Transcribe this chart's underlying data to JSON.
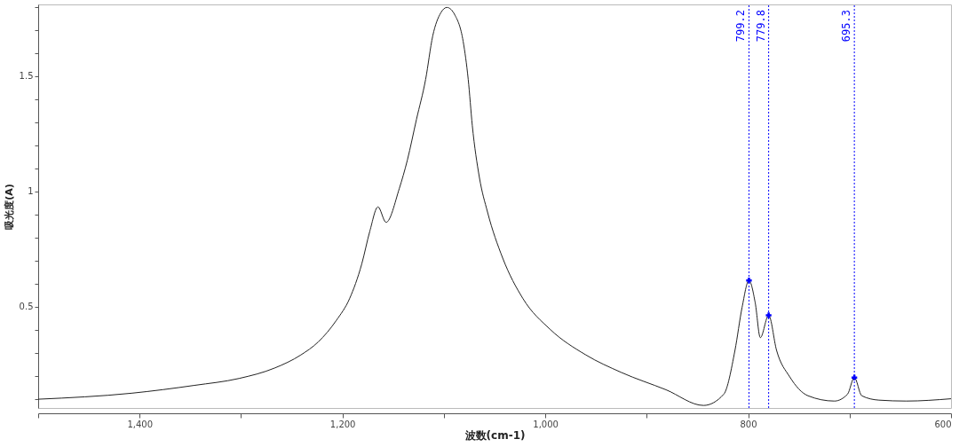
{
  "chart_data": {
    "type": "line",
    "xlabel": "波数(cm-1)",
    "ylabel": "吸光度(A)",
    "xlim": [
      1500,
      600
    ],
    "ylim": [
      0.06,
      1.81
    ],
    "xticks": [
      {
        "value": 1500,
        "label": null
      },
      {
        "value": 1400,
        "label": "1,400"
      },
      {
        "value": 1300,
        "label": null
      },
      {
        "value": 1200,
        "label": "1,200"
      },
      {
        "value": 1100,
        "label": null
      },
      {
        "value": 1000,
        "label": "1,000"
      },
      {
        "value": 900,
        "label": null
      },
      800,
      {
        "value": 700,
        "label": null
      },
      600
    ],
    "yticks": [
      {
        "value": 0.1,
        "label": null
      },
      {
        "value": 0.2,
        "label": null
      },
      {
        "value": 0.3,
        "label": null
      },
      {
        "value": 0.4,
        "label": null
      },
      0.5,
      {
        "value": 0.6,
        "label": null
      },
      {
        "value": 0.7,
        "label": null
      },
      {
        "value": 0.8,
        "label": null
      },
      {
        "value": 0.9,
        "label": null
      },
      1,
      {
        "value": 1.1,
        "label": null
      },
      {
        "value": 1.2,
        "label": null
      },
      {
        "value": 1.3,
        "label": null
      },
      {
        "value": 1.4,
        "label": null
      },
      1.5,
      {
        "value": 1.6,
        "label": null
      },
      {
        "value": 1.7,
        "label": null
      },
      {
        "value": 1.8,
        "label": null
      }
    ],
    "series": [
      {
        "color": "#222222",
        "x": [
          1500,
          1408,
          1346,
          1302,
          1267,
          1241,
          1224,
          1206,
          1193,
          1181,
          1173,
          1165,
          1157,
          1144,
          1136,
          1127,
          1118,
          1111,
          1103,
          1097,
          1089,
          1081,
          1076,
          1072,
          1065,
          1057,
          1042,
          1022,
          995,
          960,
          925,
          881,
          844,
          824,
          813,
          806,
          799.2,
          793,
          788,
          779.8,
          772,
          759,
          741,
          715,
          702,
          695.3,
          688,
          671,
          644,
          600
        ],
        "values": [
          0.098,
          0.124,
          0.158,
          0.188,
          0.233,
          0.29,
          0.346,
          0.44,
          0.534,
          0.684,
          0.827,
          0.932,
          0.865,
          1.011,
          1.135,
          1.312,
          1.485,
          1.673,
          1.774,
          1.797,
          1.763,
          1.65,
          1.485,
          1.286,
          1.06,
          0.91,
          0.71,
          0.534,
          0.4,
          0.29,
          0.214,
          0.139,
          0.071,
          0.12,
          0.31,
          0.496,
          0.613,
          0.515,
          0.365,
          0.462,
          0.31,
          0.195,
          0.113,
          0.09,
          0.12,
          0.192,
          0.113,
          0.094,
          0.09,
          0.1
        ]
      },
      {
        "type": "scatter",
        "color": "#0000ff",
        "marker": "cross",
        "x": [
          799.2,
          779.8,
          695.3
        ],
        "values": [
          0.613,
          0.462,
          0.192
        ]
      }
    ],
    "ref_lines": [
      {
        "axis": "x",
        "value": 799.2,
        "label": "799.2",
        "color": "#0000ff",
        "line_style": "dotted"
      },
      {
        "axis": "x",
        "value": 779.8,
        "label": "779.8",
        "color": "#0000ff",
        "line_style": "dotted"
      },
      {
        "axis": "x",
        "value": 695.3,
        "label": "695.3",
        "color": "#0000ff",
        "line_style": "dotted"
      }
    ]
  }
}
